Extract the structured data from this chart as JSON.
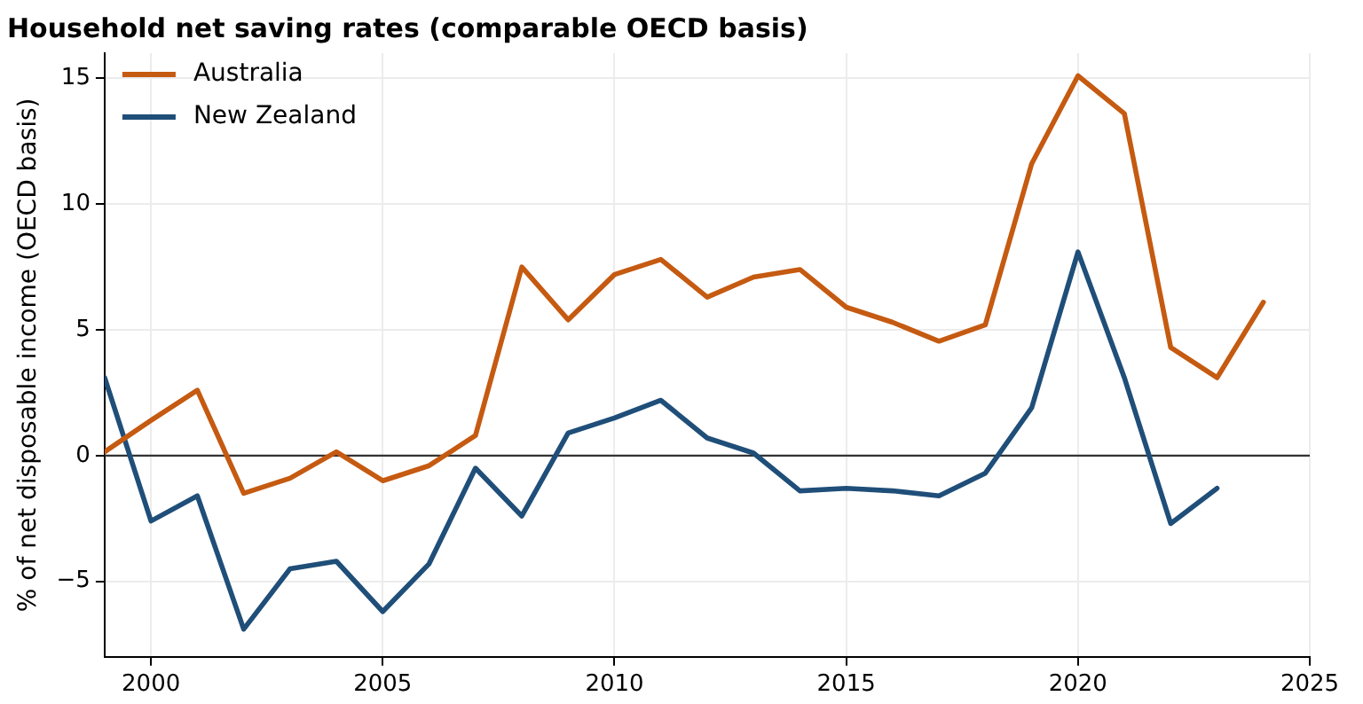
{
  "chart_data": {
    "type": "line",
    "title": "Household net saving rates (comparable OECD basis)",
    "ylabel": "% of net disposable income (OECD basis)",
    "x": [
      1999,
      2000,
      2001,
      2002,
      2003,
      2004,
      2005,
      2006,
      2007,
      2008,
      2009,
      2010,
      2011,
      2012,
      2013,
      2014,
      2015,
      2016,
      2017,
      2018,
      2019,
      2020,
      2021,
      2022,
      2023,
      2024
    ],
    "series": [
      {
        "name": "Australia",
        "color": "#c55a11",
        "values": [
          0.15,
          1.4,
          2.6,
          -1.5,
          -0.9,
          0.15,
          -1.0,
          -0.4,
          0.8,
          7.5,
          5.4,
          7.2,
          7.8,
          6.3,
          7.1,
          7.4,
          5.9,
          5.3,
          4.55,
          5.2,
          11.6,
          15.1,
          13.6,
          4.3,
          3.1,
          6.1
        ]
      },
      {
        "name": "New Zealand",
        "color": "#1f4e79",
        "values": [
          3.1,
          -2.6,
          -1.6,
          -6.9,
          -4.5,
          -4.2,
          -6.2,
          -4.3,
          -0.5,
          -2.4,
          0.9,
          1.5,
          2.2,
          0.7,
          0.1,
          -1.4,
          -1.3,
          -1.4,
          -1.6,
          -0.7,
          1.9,
          8.1,
          3.1,
          -2.7,
          -1.3,
          null
        ]
      }
    ],
    "xlim": [
      1999,
      2025
    ],
    "xticks": [
      2000,
      2005,
      2010,
      2015,
      2020,
      2025
    ],
    "ylim": [
      -8,
      16
    ],
    "yticks": [
      -5,
      0,
      5,
      10,
      15
    ],
    "ref_lines": [
      {
        "axis": "y",
        "value": 0,
        "color": "#333333"
      }
    ],
    "grid": true,
    "legend": "top left",
    "marker": "none",
    "line_style": "solid"
  }
}
